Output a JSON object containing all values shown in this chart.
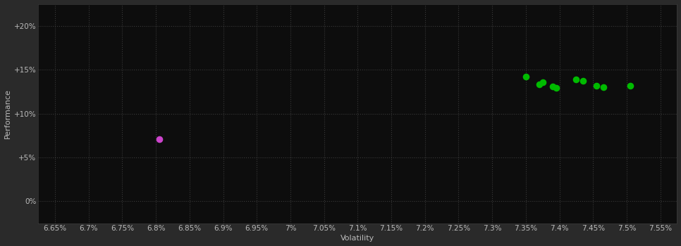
{
  "background_color": "#2a2a2a",
  "grid_color": "#3a3a3a",
  "plot_bg_color": "#0d0d0d",
  "xlabel": "Volatility",
  "ylabel": "Performance",
  "xticks": [
    6.65,
    6.7,
    6.75,
    6.8,
    6.85,
    6.9,
    6.95,
    7.0,
    7.05,
    7.1,
    7.15,
    7.2,
    7.25,
    7.3,
    7.35,
    7.4,
    7.45,
    7.5,
    7.55
  ],
  "xtick_labels": [
    "6.65%",
    "6.7%",
    "6.75%",
    "6.8%",
    "6.85%",
    "6.9%",
    "6.95%",
    "7%",
    "7.05%",
    "7.1%",
    "7.15%",
    "7.2%",
    "7.25%",
    "7.3%",
    "7.35%",
    "7.4%",
    "7.45%",
    "7.5%",
    "7.55%"
  ],
  "yticks": [
    0,
    5,
    10,
    15,
    20
  ],
  "ytick_labels": [
    "0%",
    "+5%",
    "+10%",
    "+15%",
    "+20%"
  ],
  "xlim_min": 6.625,
  "xlim_max": 7.575,
  "ylim_min": -2.5,
  "ylim_max": 22.5,
  "green_points": [
    [
      7.35,
      14.2
    ],
    [
      7.37,
      13.3
    ],
    [
      7.375,
      13.6
    ],
    [
      7.39,
      13.1
    ],
    [
      7.395,
      12.9
    ],
    [
      7.425,
      13.85
    ],
    [
      7.435,
      13.7
    ],
    [
      7.455,
      13.15
    ],
    [
      7.465,
      13.0
    ],
    [
      7.505,
      13.15
    ]
  ],
  "magenta_points": [
    [
      6.805,
      7.1
    ]
  ],
  "green_color": "#00bb00",
  "magenta_color": "#cc44cc",
  "point_size": 35,
  "font_color": "#bbbbbb",
  "axis_label_fontsize": 8,
  "tick_fontsize": 7.5
}
